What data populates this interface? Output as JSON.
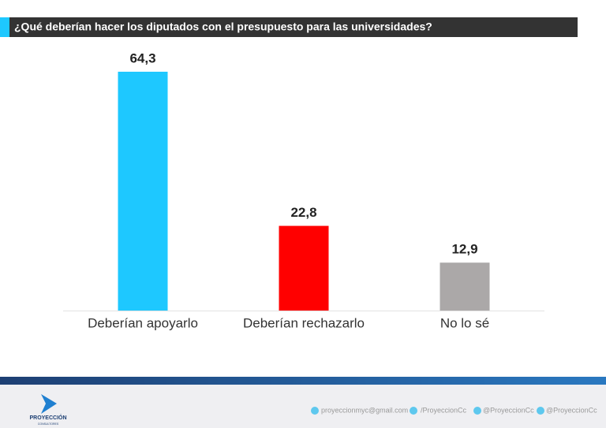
{
  "chart_data": {
    "type": "bar",
    "title": "¿Qué deberían hacer los diputados con el presupuesto para las universidades?",
    "categories": [
      "Deberían apoyarlo",
      "Deberían rechazarlo",
      "No lo sé"
    ],
    "values": [
      64.3,
      22.8,
      12.9
    ],
    "value_labels": [
      "64,3",
      "22,8",
      "12,9"
    ],
    "colors": [
      "#1ec8ff",
      "#ff0000",
      "#aba8a8"
    ]
  },
  "footer": {
    "logo_name": "PROYECCIÓN",
    "logo_tagline": "CONSULTORES",
    "contacts": [
      "proyeccionmyc@gmail.com",
      "/ProyeccionCc",
      "@ProyeccionCc",
      "@ProyeccionCc"
    ]
  }
}
